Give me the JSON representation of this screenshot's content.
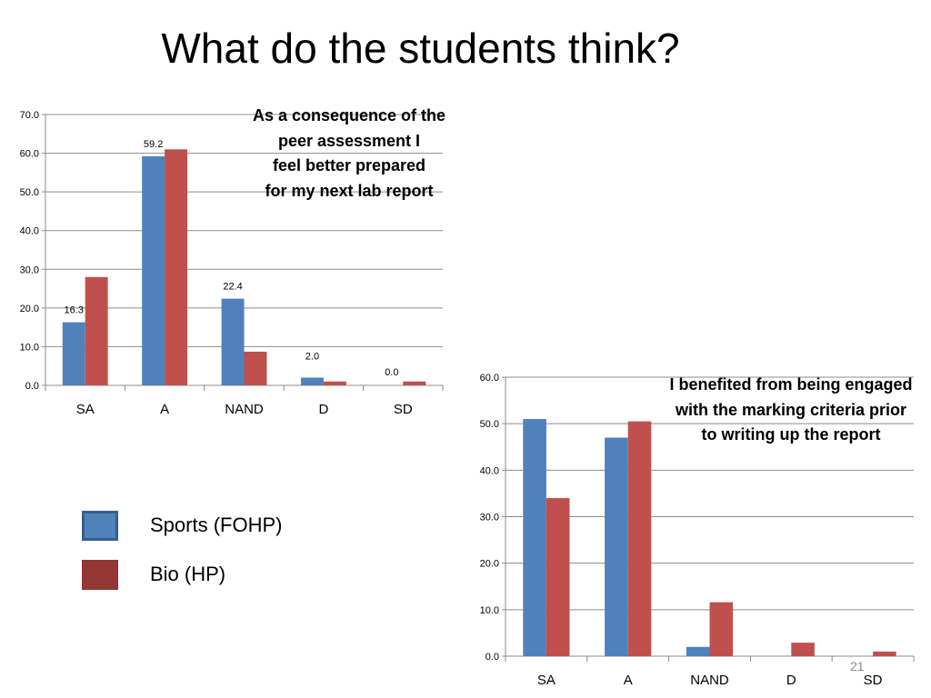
{
  "slide": {
    "title": "What do the students think?",
    "number": "21"
  },
  "legend": [
    {
      "label": "Sports (FOHP)",
      "color": "#4f81bd",
      "border": "#385d8a"
    },
    {
      "label": "Bio (HP)",
      "color": "#943634",
      "border": "#943634"
    }
  ],
  "chart_data": [
    {
      "type": "bar",
      "title": "As a consequence of the peer assessment I feel  better prepared for my next lab report",
      "title_lines": [
        "As a consequence of the",
        "peer assessment I",
        "feel  better prepared",
        "for my next lab report"
      ],
      "categories": [
        "SA",
        "A",
        "NAND",
        "D",
        "SD"
      ],
      "ylim": [
        0,
        70
      ],
      "yticks": [
        "0.0",
        "10.0",
        "20.0",
        "30.0",
        "40.0",
        "50.0",
        "60.0",
        "70.0"
      ],
      "grid": true,
      "series": [
        {
          "name": "Sports (FOHP)",
          "color": "#4f81bd",
          "values": [
            16.3,
            59.2,
            22.4,
            2.0,
            0.0
          ]
        },
        {
          "name": "Bio (HP)",
          "color": "#c0504d",
          "values": [
            28.0,
            61.0,
            8.7,
            1.0,
            1.0
          ]
        }
      ],
      "data_labels": [
        "16.3",
        "59.2",
        "22.4",
        "2.0",
        "0.0"
      ]
    },
    {
      "type": "bar",
      "title": "I benefited from being engaged with the marking criteria prior to writing up the report",
      "title_lines": [
        "I benefited from being engaged",
        "with the marking criteria prior",
        "to writing up the report"
      ],
      "categories": [
        "SA",
        "A",
        "NAND",
        "D",
        "SD"
      ],
      "ylim": [
        0,
        60
      ],
      "yticks": [
        "0.0",
        "10.0",
        "20.0",
        "30.0",
        "40.0",
        "50.0",
        "60.0"
      ],
      "grid": true,
      "series": [
        {
          "name": "Sports (FOHP)",
          "color": "#4f81bd",
          "values": [
            51.0,
            47.0,
            2.0,
            0.0,
            0.0
          ]
        },
        {
          "name": "Bio (HP)",
          "color": "#c0504d",
          "values": [
            34.0,
            50.5,
            11.6,
            2.9,
            1.0
          ]
        }
      ]
    }
  ]
}
